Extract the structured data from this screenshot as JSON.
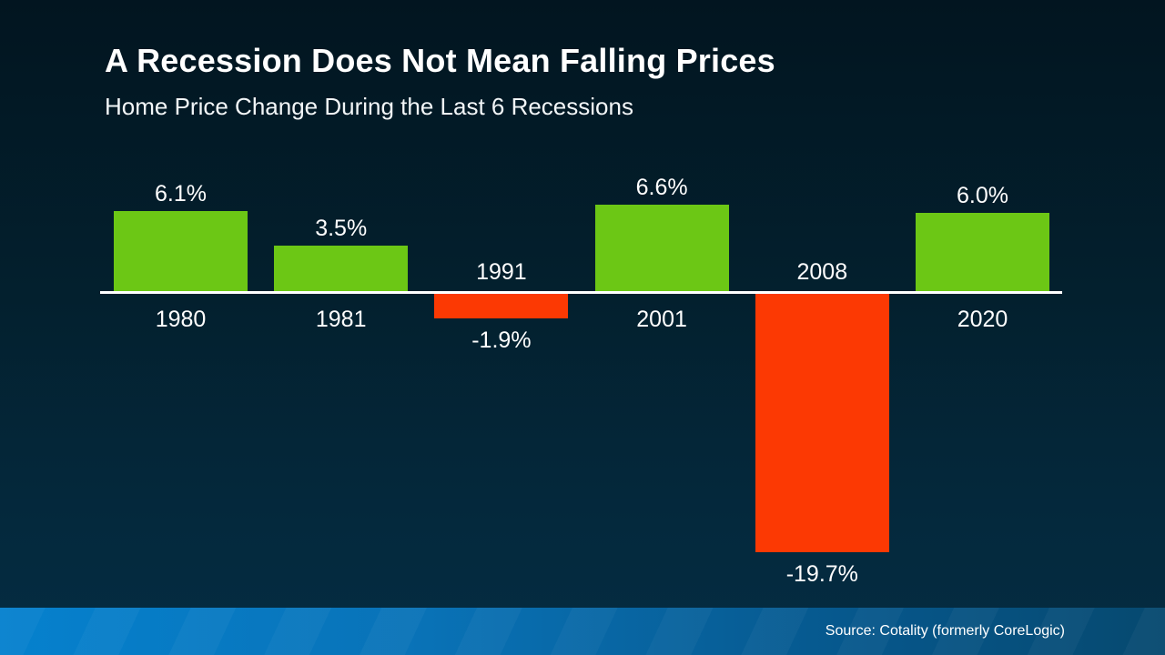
{
  "header": {
    "title": "A Recession Does Not Mean Falling Prices",
    "subtitle": "Home Price Change During the Last 6 Recessions"
  },
  "chart_data": {
    "type": "bar",
    "title": "A Recession Does Not Mean Falling Prices",
    "subtitle": "Home Price Change During the Last 6 Recessions",
    "categories": [
      "1980",
      "1981",
      "1991",
      "2001",
      "2008",
      "2020"
    ],
    "values": [
      6.1,
      3.5,
      -1.9,
      6.6,
      -19.7,
      6.0
    ],
    "value_labels": [
      "6.1%",
      "3.5%",
      "-1.9%",
      "6.6%",
      "-19.7%",
      "6.0%"
    ],
    "xlabel": "",
    "ylabel": "",
    "ylim": [
      -22,
      8
    ],
    "grid": false,
    "legend": false,
    "colors": {
      "positive_bar": "#6CC715",
      "negative_bar": "#FC3903",
      "axis_line": "#FFFFFF",
      "label_text": "#FFFFFF",
      "background_top": "#021520",
      "background_bottom": "#052C42",
      "footer_left": "#0581CE",
      "footer_right": "#06496F"
    }
  },
  "footer": {
    "source": "Source: Cotality (formerly CoreLogic)"
  }
}
